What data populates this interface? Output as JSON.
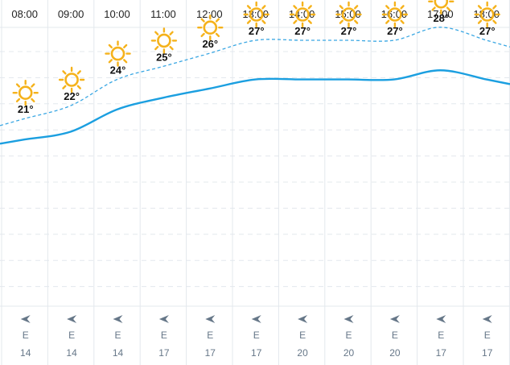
{
  "colors": {
    "temperature_line": "#1b9fe0",
    "feels_like_line": "#3aa7e3",
    "sun": "#f5b21b",
    "grid": "#e3e8ed",
    "wind_text": "#667788"
  },
  "icons": {
    "weather": "sun-icon",
    "wind": "wind-arrow-icon"
  },
  "chart_data": {
    "type": "line",
    "x": [
      "08:00",
      "09:00",
      "10:00",
      "11:00",
      "12:00",
      "13:00",
      "14:00",
      "15:00",
      "16:00",
      "17:00",
      "18:00"
    ],
    "temperature_labels": [
      "21°",
      "22°",
      "24°",
      "25°",
      "26°",
      "27°",
      "27°",
      "27°",
      "27°",
      "28°",
      "27°"
    ],
    "series": [
      {
        "values": [
          21,
          22,
          24,
          25,
          26,
          27,
          27,
          27,
          27,
          28,
          27
        ]
      },
      {
        "values": [
          19.4,
          20,
          21.7,
          22.6,
          23.3,
          24,
          24,
          24,
          24,
          24.7,
          24
        ]
      }
    ],
    "conditions": [
      "sun",
      "sun",
      "sun",
      "sun",
      "sun",
      "sun",
      "sun",
      "sun",
      "sun",
      "sun",
      "sun"
    ],
    "wind": {
      "direction": [
        "E",
        "E",
        "E",
        "E",
        "E",
        "E",
        "E",
        "E",
        "E",
        "E",
        "E"
      ],
      "speed": [
        "14",
        "14",
        "14",
        "17",
        "17",
        "17",
        "20",
        "20",
        "20",
        "17",
        "17"
      ]
    },
    "ylim": [
      15,
      30
    ],
    "grid": true
  }
}
